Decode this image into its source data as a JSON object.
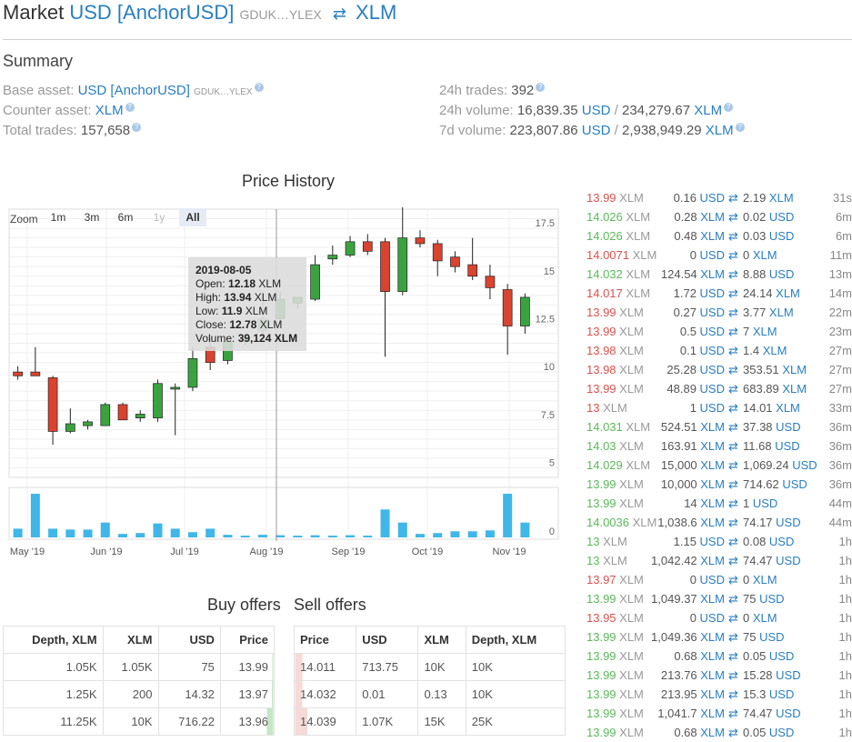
{
  "header": {
    "prefix": "Market",
    "base_asset": "USD [AnchorUSD]",
    "base_issuer": "GDUK…YLEX",
    "counter_asset": "XLM"
  },
  "summary": {
    "heading": "Summary",
    "base_label": "Base asset:",
    "base_value": "USD [AnchorUSD]",
    "base_issuer": "GDUK…YLEX",
    "counter_label": "Counter asset:",
    "counter_value": "XLM",
    "total_label": "Total trades:",
    "total_value": "157,658",
    "trades24_label": "24h trades:",
    "trades24_value": "392",
    "vol24_label": "24h volume:",
    "vol24_a": "16,839.35",
    "vol24_a_unit": "USD",
    "vol24_b": "234,279.67",
    "vol24_b_unit": "XLM",
    "vol7_label": "7d volume:",
    "vol7_a": "223,807.86",
    "vol7_a_unit": "USD",
    "vol7_b": "2,938,949.29",
    "vol7_b_unit": "XLM"
  },
  "price_history": {
    "title": "Price History",
    "zoom_label": "Zoom",
    "zoom_buttons": [
      "1m",
      "3m",
      "6m",
      "1y",
      "All"
    ],
    "tooltip": {
      "date": "2019-08-05",
      "open_label": "Open:",
      "open": "12.18",
      "open_unit": "XLM",
      "high_label": "High:",
      "high": "13.94",
      "high_unit": "XLM",
      "low_label": "Low:",
      "low": "11.9",
      "low_unit": "XLM",
      "close_label": "Close:",
      "close": "12.78",
      "close_unit": "XLM",
      "volume_label": "Volume:",
      "volume": "39,124",
      "volume_unit": "XLM"
    }
  },
  "chart_data": {
    "type": "candlestick",
    "title": "Price History",
    "y_ticks": [
      "5",
      "7.5",
      "10",
      "12.5",
      "15",
      "17.5"
    ],
    "ylim": [
      4.5,
      18.5
    ],
    "x_ticks": [
      "May '19",
      "Jun '19",
      "Jul '19",
      "Aug '19",
      "Sep '19",
      "Oct '19",
      "Nov '19"
    ],
    "volume_tick": "0",
    "candles": [
      {
        "o": 10.0,
        "h": 10.3,
        "l": 9.6,
        "c": 9.8,
        "v": 0.2
      },
      {
        "o": 10.0,
        "h": 11.3,
        "l": 9.9,
        "c": 9.8,
        "v": 1.0
      },
      {
        "o": 9.7,
        "h": 9.8,
        "l": 6.2,
        "c": 6.9,
        "v": 0.2
      },
      {
        "o": 6.9,
        "h": 8.1,
        "l": 6.8,
        "c": 7.3,
        "v": 0.18
      },
      {
        "o": 7.2,
        "h": 7.5,
        "l": 7.0,
        "c": 7.4,
        "v": 0.18
      },
      {
        "o": 7.2,
        "h": 8.4,
        "l": 7.2,
        "c": 8.3,
        "v": 0.34
      },
      {
        "o": 8.3,
        "h": 8.4,
        "l": 7.6,
        "c": 7.5,
        "v": 0.08
      },
      {
        "o": 7.6,
        "h": 8.0,
        "l": 7.4,
        "c": 7.8,
        "v": 0.1
      },
      {
        "o": 7.6,
        "h": 9.6,
        "l": 7.4,
        "c": 9.4,
        "v": 0.32
      },
      {
        "o": 9.2,
        "h": 9.4,
        "l": 6.7,
        "c": 9.2,
        "v": 0.2
      },
      {
        "o": 9.2,
        "h": 11.3,
        "l": 9.0,
        "c": 10.7,
        "v": 0.12
      },
      {
        "o": 11.3,
        "h": 11.8,
        "l": 10.1,
        "c": 10.5,
        "v": 0.2
      },
      {
        "o": 10.6,
        "h": 11.8,
        "l": 10.4,
        "c": 11.6,
        "v": 0.06
      },
      {
        "o": 11.6,
        "h": 12.0,
        "l": 11.4,
        "c": 11.8,
        "v": 0.04
      },
      {
        "o": 12.18,
        "h": 13.94,
        "l": 11.9,
        "c": 12.78,
        "v": 0.06
      },
      {
        "o": 12.78,
        "h": 14.2,
        "l": 12.5,
        "c": 13.8,
        "v": 0.05
      },
      {
        "o": 13.6,
        "h": 13.8,
        "l": 13.3,
        "c": 13.9,
        "v": 0.04
      },
      {
        "o": 13.8,
        "h": 16.1,
        "l": 13.7,
        "c": 15.6,
        "v": 0.05
      },
      {
        "o": 15.9,
        "h": 16.6,
        "l": 15.6,
        "c": 16.1,
        "v": 0.04
      },
      {
        "o": 16.1,
        "h": 17.1,
        "l": 16.0,
        "c": 16.8,
        "v": 0.05
      },
      {
        "o": 16.8,
        "h": 17.2,
        "l": 16.1,
        "c": 16.3,
        "v": 0.04
      },
      {
        "o": 16.8,
        "h": 17.0,
        "l": 10.8,
        "c": 14.2,
        "v": 0.64
      },
      {
        "o": 14.2,
        "h": 18.6,
        "l": 14.0,
        "c": 17.0,
        "v": 0.34
      },
      {
        "o": 17.0,
        "h": 17.4,
        "l": 16.5,
        "c": 16.7,
        "v": 0.08
      },
      {
        "o": 16.7,
        "h": 16.9,
        "l": 15.0,
        "c": 15.8,
        "v": 0.1
      },
      {
        "o": 16.0,
        "h": 16.3,
        "l": 15.2,
        "c": 15.5,
        "v": 0.14
      },
      {
        "o": 15.6,
        "h": 17.0,
        "l": 14.8,
        "c": 15.0,
        "v": 0.14
      },
      {
        "o": 15.0,
        "h": 15.6,
        "l": 13.8,
        "c": 14.4,
        "v": 0.16
      },
      {
        "o": 14.3,
        "h": 14.6,
        "l": 10.9,
        "c": 12.4,
        "v": 1.0
      },
      {
        "o": 12.4,
        "h": 14.1,
        "l": 12.0,
        "c": 13.9,
        "v": 0.34
      }
    ]
  },
  "buy_offers": {
    "title": "Buy offers",
    "headers": [
      "Depth, XLM",
      "XLM",
      "USD",
      "Price"
    ],
    "rows": [
      [
        "1.05K",
        "1.05K",
        "75",
        "13.99"
      ],
      [
        "1.25K",
        "200",
        "14.32",
        "13.97"
      ],
      [
        "11.25K",
        "10K",
        "716.22",
        "13.96"
      ]
    ],
    "depth_fill": [
      0.02,
      0.03,
      0.12
    ]
  },
  "sell_offers": {
    "title": "Sell offers",
    "headers": [
      "Price",
      "USD",
      "XLM",
      "Depth, XLM"
    ],
    "rows": [
      [
        "14.011",
        "713.75",
        "10K",
        "10K"
      ],
      [
        "14.032",
        "0.01",
        "0.13",
        "10K"
      ],
      [
        "14.039",
        "1.07K",
        "15K",
        "25K"
      ]
    ],
    "depth_fill": [
      0.12,
      0.12,
      0.2
    ]
  },
  "trades": [
    {
      "price": "13.99",
      "side": "sell",
      "a": "0.16",
      "a_u": "USD",
      "b": "2.19",
      "b_u": "XLM",
      "t": "31s"
    },
    {
      "price": "14.026",
      "side": "buy",
      "a": "0.28",
      "a_u": "XLM",
      "b": "0.02",
      "b_u": "USD",
      "t": "6m"
    },
    {
      "price": "14.026",
      "side": "buy",
      "a": "0.48",
      "a_u": "XLM",
      "b": "0.03",
      "b_u": "USD",
      "t": "6m"
    },
    {
      "price": "14.0071",
      "side": "sell",
      "a": "0",
      "a_u": "USD",
      "b": "0",
      "b_u": "XLM",
      "t": "11m"
    },
    {
      "price": "14.032",
      "side": "buy",
      "a": "124.54",
      "a_u": "XLM",
      "b": "8.88",
      "b_u": "USD",
      "t": "13m"
    },
    {
      "price": "14.017",
      "side": "sell",
      "a": "1.72",
      "a_u": "USD",
      "b": "24.14",
      "b_u": "XLM",
      "t": "14m"
    },
    {
      "price": "13.99",
      "side": "sell",
      "a": "0.27",
      "a_u": "USD",
      "b": "3.77",
      "b_u": "XLM",
      "t": "22m"
    },
    {
      "price": "13.99",
      "side": "sell",
      "a": "0.5",
      "a_u": "USD",
      "b": "7",
      "b_u": "XLM",
      "t": "23m"
    },
    {
      "price": "13.98",
      "side": "sell",
      "a": "0.1",
      "a_u": "USD",
      "b": "1.4",
      "b_u": "XLM",
      "t": "27m"
    },
    {
      "price": "13.98",
      "side": "sell",
      "a": "25.28",
      "a_u": "USD",
      "b": "353.51",
      "b_u": "XLM",
      "t": "27m"
    },
    {
      "price": "13.99",
      "side": "sell",
      "a": "48.89",
      "a_u": "USD",
      "b": "683.89",
      "b_u": "XLM",
      "t": "27m"
    },
    {
      "price": "13",
      "side": "sell",
      "a": "1",
      "a_u": "USD",
      "b": "14.01",
      "b_u": "XLM",
      "t": "33m"
    },
    {
      "price": "14.031",
      "side": "buy",
      "a": "524.51",
      "a_u": "XLM",
      "b": "37.38",
      "b_u": "USD",
      "t": "36m"
    },
    {
      "price": "14.03",
      "side": "buy",
      "a": "163.91",
      "a_u": "XLM",
      "b": "11.68",
      "b_u": "USD",
      "t": "36m"
    },
    {
      "price": "14.029",
      "side": "buy",
      "a": "15,000",
      "a_u": "XLM",
      "b": "1,069.24",
      "b_u": "USD",
      "t": "36m"
    },
    {
      "price": "13.99",
      "side": "buy",
      "a": "10,000",
      "a_u": "XLM",
      "b": "714.62",
      "b_u": "USD",
      "t": "36m"
    },
    {
      "price": "13.99",
      "side": "buy",
      "a": "14",
      "a_u": "XLM",
      "b": "1",
      "b_u": "USD",
      "t": "44m"
    },
    {
      "price": "14.0036",
      "side": "buy",
      "a": "1,038.6",
      "a_u": "XLM",
      "b": "74.17",
      "b_u": "USD",
      "t": "44m"
    },
    {
      "price": "13",
      "side": "buy",
      "a": "1.15",
      "a_u": "USD",
      "b": "0.08",
      "b_u": "USD",
      "t": "1h"
    },
    {
      "price": "13",
      "side": "buy",
      "a": "1,042.42",
      "a_u": "XLM",
      "b": "74.47",
      "b_u": "USD",
      "t": "1h"
    },
    {
      "price": "13.97",
      "side": "sell",
      "a": "0",
      "a_u": "USD",
      "b": "0",
      "b_u": "XLM",
      "t": "1h"
    },
    {
      "price": "13.99",
      "side": "buy",
      "a": "1,049.37",
      "a_u": "XLM",
      "b": "75",
      "b_u": "USD",
      "t": "1h"
    },
    {
      "price": "13.95",
      "side": "sell",
      "a": "0",
      "a_u": "USD",
      "b": "0",
      "b_u": "XLM",
      "t": "1h"
    },
    {
      "price": "13.99",
      "side": "buy",
      "a": "1,049.36",
      "a_u": "XLM",
      "b": "75",
      "b_u": "USD",
      "t": "1h"
    },
    {
      "price": "13.99",
      "side": "buy",
      "a": "0.68",
      "a_u": "XLM",
      "b": "0.05",
      "b_u": "USD",
      "t": "1h"
    },
    {
      "price": "13.99",
      "side": "buy",
      "a": "213.76",
      "a_u": "XLM",
      "b": "15.28",
      "b_u": "USD",
      "t": "1h"
    },
    {
      "price": "13.99",
      "side": "buy",
      "a": "213.95",
      "a_u": "XLM",
      "b": "15.3",
      "b_u": "USD",
      "t": "1h"
    },
    {
      "price": "13.99",
      "side": "buy",
      "a": "1,041.7",
      "a_u": "XLM",
      "b": "74.47",
      "b_u": "USD",
      "t": "1h"
    },
    {
      "price": "13.99",
      "side": "buy",
      "a": "0.68",
      "a_u": "XLM",
      "b": "0.05",
      "b_u": "USD",
      "t": "1h"
    }
  ],
  "price_unit": "XLM",
  "swap_glyph": "⇄",
  "colors": {
    "up": "#3aa33f",
    "down": "#d9432f",
    "volume": "#3fb7e8",
    "accent": "#2a7ec0"
  }
}
